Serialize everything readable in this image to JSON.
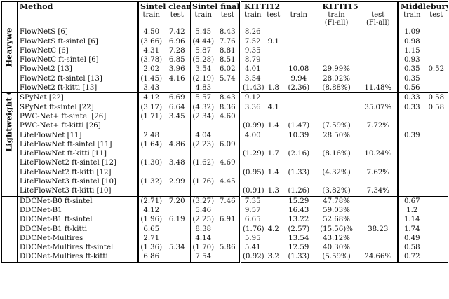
{
  "headers": {
    "method": "Method",
    "sintel_clean": "Sintel clean",
    "sintel_final": "Sintel final",
    "kitti12": "KITTI12",
    "kitti15": "KITTI15",
    "middlebury": "Middlebury",
    "train": "train",
    "test": "test",
    "fl_all": "(Fl-all)"
  },
  "groups": [
    {
      "label": "Heavyweight CNN",
      "rows": [
        [
          "FlowNetS [6]",
          "4.50",
          "7.42",
          "5.45",
          "8.43",
          "8.26",
          "",
          "",
          "",
          "",
          "1.09",
          ""
        ],
        [
          "FlowNetS ft-sintel [6]",
          "(3.66)",
          "6.96",
          "(4.44)",
          "7.76",
          "7.52",
          "9.1",
          "",
          "",
          "",
          "0.98",
          ""
        ],
        [
          "FlowNetC [6]",
          "4.31",
          "7.28",
          "5.87",
          "8.81",
          "9.35",
          "",
          "",
          "",
          "",
          "1.15",
          ""
        ],
        [
          "FlowNetC ft-sintel [6]",
          "(3.78)",
          "6.85",
          "(5.28)",
          "8.51",
          "8.79",
          "",
          "",
          "",
          "",
          "0.93",
          ""
        ],
        [
          "FlowNet2 [13]",
          "2.02",
          "3.96",
          "3.54",
          "6.02",
          "4.01",
          "",
          "10.08",
          "29.99%",
          "",
          "0.35",
          "0.52"
        ],
        [
          "FlowNet2 ft-sintel [13]",
          "(1.45)",
          "4.16",
          "(2.19)",
          "5.74",
          "3.54",
          "",
          "9.94",
          "28.02%",
          "",
          "0.35",
          ""
        ],
        [
          "FlowNet2 ft-kitti [13]",
          "3.43",
          "",
          "4.83",
          "",
          "(1.43)",
          "1.8",
          "(2.36)",
          "(8.88%)",
          "11.48%",
          "0.56",
          ""
        ]
      ]
    },
    {
      "label": "Lightweight CNN",
      "rows": [
        [
          "SPyNet [22]",
          "4.12",
          "6.69",
          "5.57",
          "8.43",
          "9.12",
          "",
          "",
          "",
          "",
          "0.33",
          "0.58"
        ],
        [
          "SPyNet ft-sintel [22]",
          "(3.17)",
          "6.64",
          "(4.32)",
          "8.36",
          "3.36",
          "4.1",
          "",
          "",
          "35.07%",
          "0.33",
          "0.58"
        ],
        [
          "PWC-Net+ ft-sintel [26]",
          "(1.71)",
          "3.45",
          "(2.34)",
          "4.60",
          "",
          "",
          "",
          "",
          "",
          "",
          ""
        ],
        [
          "PWC-Net+ ft-kitti [26]",
          "",
          "",
          "",
          "",
          "(0.99)",
          "1.4",
          "(1.47)",
          "(7.59%)",
          "7.72%",
          "",
          ""
        ],
        [
          "LiteFlowNet [11]",
          "2.48",
          "",
          "4.04",
          "",
          "4.00",
          "",
          "10.39",
          "28.50%",
          "",
          "0.39",
          ""
        ],
        [
          "LiteFlowNet ft-sintel [11]",
          "(1.64)",
          "4.86",
          "(2.23)",
          "6.09",
          "",
          "",
          "",
          "",
          "",
          "",
          ""
        ],
        [
          "LiteFlowNet ft-kitti [11]",
          "",
          "",
          "",
          "",
          "(1.29)",
          "1.7",
          "(2.16)",
          "(8.16%)",
          "10.24%",
          "",
          ""
        ],
        [
          "LiteFlowNet2 ft-sintel [12]",
          "(1.30)",
          "3.48",
          "(1.62)",
          "4.69",
          "",
          "",
          "",
          "",
          "",
          "",
          ""
        ],
        [
          "LiteFlowNet2 ft-kitti [12]",
          "",
          "",
          "",
          "",
          "(0.95)",
          "1.4",
          "(1.33)",
          "(4.32%)",
          "7.62%",
          "",
          ""
        ],
        [
          "LiteFlowNet3 ft-sintel [10]",
          "(1.32)",
          "2.99",
          "(1.76)",
          "4.45",
          "",
          "",
          "",
          "",
          "",
          "",
          ""
        ],
        [
          "LiteFlowNet3 ft-kitti [10]",
          "",
          "",
          "",
          "",
          "(0.91)",
          "1.3",
          "(1.26)",
          "(3.82%)",
          "7.34%",
          "",
          ""
        ]
      ]
    },
    {
      "label": "",
      "rows": [
        [
          "DDCNet-B0 ft-sintel",
          "(2.71)",
          "7.20",
          "(3.27)",
          "7.46",
          "7.35",
          "",
          "15.29",
          "47.78%",
          "",
          "0.67",
          ""
        ],
        [
          "DDCNet-B1",
          "4.12",
          "",
          "5.46",
          "",
          "9.57",
          "",
          "16.43",
          "59.03%",
          "",
          "1.2",
          ""
        ],
        [
          "DDCNet-B1 ft-sintel",
          "(1.96)",
          "6.19",
          "(2.25)",
          "6.91",
          "6.65",
          "",
          "13.22",
          "52.68%",
          "",
          "1.14",
          ""
        ],
        [
          "DDCNet-B1 ft-kitti",
          "6.65",
          "",
          "8.38",
          "",
          "(1.76)",
          "4.2",
          "(2.57)",
          "(15.56)%",
          "38.23",
          "1.74",
          ""
        ],
        [
          "DDCNet-Multires",
          "2.71",
          "",
          "4.14",
          "",
          "5.95",
          "",
          "13.54",
          "43.12%",
          "",
          "0.49",
          ""
        ],
        [
          "DDCNet-Multires ft-sintel",
          "(1.36)",
          "5.34",
          "(1.70)",
          "5.86",
          "5.41",
          "",
          "12.59",
          "40.30%",
          "",
          "0.58",
          ""
        ],
        [
          "DDCNet-Multires ft-kitti",
          "6.86",
          "",
          "7.54",
          "",
          "(0.92)",
          "3.2",
          "(1.33)",
          "(5.59%)",
          "24.66%",
          "0.72",
          ""
        ]
      ]
    }
  ]
}
